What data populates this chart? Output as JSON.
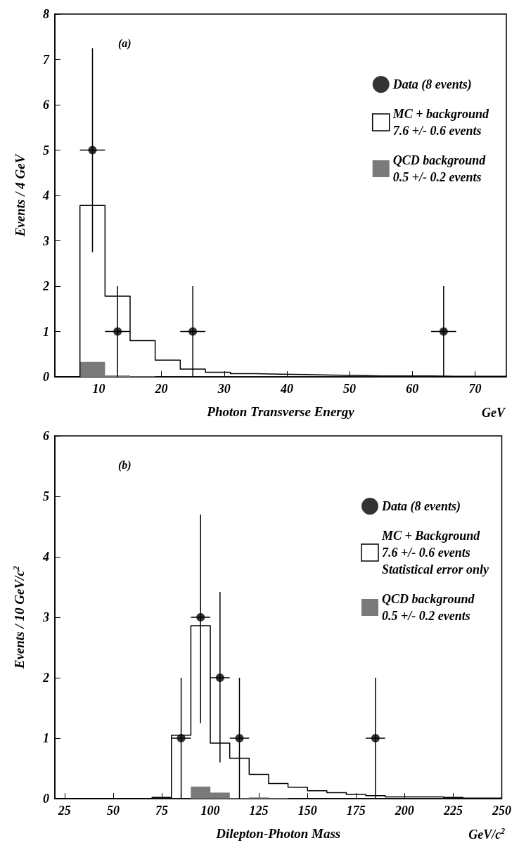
{
  "chart_data": [
    {
      "type": "histogram",
      "annotations": [
        "(a)",
        "GeV"
      ],
      "xlabel": "Photon Transverse Energy",
      "ylabel": "Events / 4 GeV",
      "bins": [
        7,
        11,
        15,
        19,
        23,
        27,
        31,
        35,
        39,
        43,
        47,
        51,
        55,
        59,
        63,
        67,
        71,
        75
      ],
      "xlim": [
        3,
        75
      ],
      "xticks": [
        10,
        20,
        30,
        40,
        50,
        60,
        70
      ],
      "ylim": [
        0,
        8
      ],
      "yticks": [
        0,
        1,
        2,
        3,
        4,
        5,
        6,
        7,
        8
      ],
      "grid": false,
      "legend": "top right",
      "series": [
        {
          "name": "Data (8 events)",
          "type": "scatter",
          "marker": "circle",
          "color": "#000000",
          "x": [
            9,
            13,
            25,
            65
          ],
          "values": [
            5,
            1,
            1,
            1
          ],
          "errors": [
            [
              2.75,
              7.25
            ],
            [
              0,
              2
            ],
            [
              0,
              2
            ],
            [
              0,
              2
            ]
          ],
          "xerrors": [
            2,
            2,
            2,
            2
          ]
        },
        {
          "name": "MC + background\n7.6 +/- 0.6 events",
          "type": "step",
          "color": "#000000",
          "x": [
            3,
            7,
            11,
            15,
            19,
            23,
            27,
            31,
            35,
            39,
            43,
            47,
            51,
            55,
            59,
            63,
            67,
            71,
            75
          ],
          "values": [
            0,
            3.78,
            1.78,
            0.8,
            0.37,
            0.17,
            0.1,
            0.07,
            0.06,
            0.05,
            0.04,
            0.03,
            0.02,
            0.02,
            0.02,
            0.01,
            0.01,
            0.01,
            0.01
          ]
        },
        {
          "name": "QCD background\n0.5 +/- 0.2 events",
          "color": "#7a7a7a",
          "values": [
            0.33,
            0.03,
            0.01,
            null,
            null,
            null,
            null,
            null,
            null,
            null,
            null,
            null,
            null,
            null,
            null,
            null,
            null
          ]
        }
      ]
    },
    {
      "type": "histogram",
      "annotations": [
        "(b)",
        "GeV/c$^{2}$"
      ],
      "xlabel": "Dilepton-Photon Mass",
      "ylabel": "Events / 10 GeV/c$^{2}$",
      "bins": [
        70,
        80,
        90,
        100,
        110,
        120,
        130,
        140,
        150,
        160,
        170,
        180,
        190,
        200,
        210,
        220,
        230,
        240,
        250
      ],
      "xlim": [
        20,
        250
      ],
      "xticks": [
        25,
        50,
        75,
        100,
        125,
        150,
        175,
        200,
        225,
        250
      ],
      "ylim": [
        0,
        6
      ],
      "yticks": [
        0,
        1,
        2,
        3,
        4,
        5,
        6
      ],
      "grid": false,
      "legend": "top right",
      "series": [
        {
          "name": "Data (8 events)",
          "type": "scatter",
          "marker": "circle",
          "color": "#000000",
          "x": [
            85,
            95,
            105,
            115,
            185
          ],
          "values": [
            1,
            3,
            2,
            1,
            1
          ],
          "errors": [
            [
              0,
              2
            ],
            [
              1.25,
              4.7
            ],
            [
              0.6,
              3.42
            ],
            [
              0,
              2
            ],
            [
              0,
              2
            ]
          ],
          "xerrors": [
            5,
            5,
            5,
            5,
            5
          ]
        },
        {
          "name": "MC + Background\n7.6 +/- 0.6 events\nStatistical error only",
          "type": "step",
          "color": "#000000",
          "x": [
            20,
            70,
            80,
            90,
            100,
            110,
            120,
            130,
            140,
            150,
            160,
            170,
            180,
            190,
            200,
            210,
            220,
            230,
            240,
            250
          ],
          "values": [
            0,
            0.02,
            1.05,
            2.86,
            0.92,
            0.67,
            0.4,
            0.25,
            0.19,
            0.13,
            0.1,
            0.07,
            0.05,
            0.03,
            0.03,
            0.03,
            0.02,
            0.01,
            0.01,
            0.01
          ]
        },
        {
          "name": "QCD background\n0.5 +/- 0.2 events",
          "color": "#7a7a7a",
          "values": [
            null,
            null,
            0.2,
            0.1,
            0.01,
            0.02,
            0.01,
            null,
            null,
            null,
            null,
            null,
            null,
            null,
            null,
            null,
            null,
            null
          ]
        }
      ]
    }
  ]
}
